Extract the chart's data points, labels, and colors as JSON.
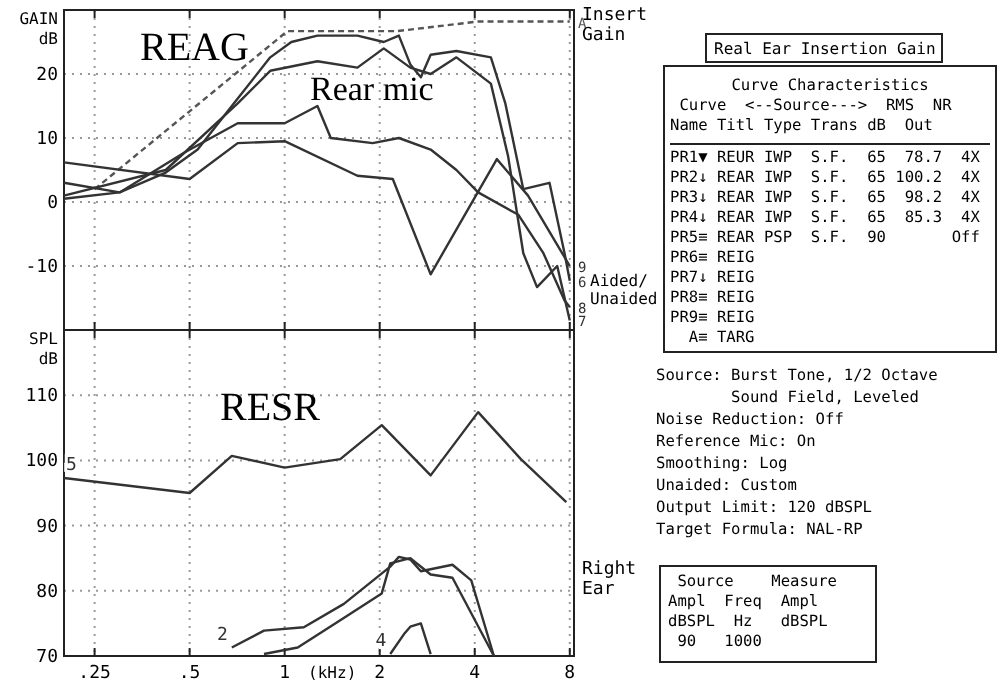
{
  "chart_data": [
    {
      "type": "line",
      "ylabel": "GAIN dB",
      "xlim": [
        0.2,
        8.25
      ],
      "ylim": [
        -20,
        30
      ],
      "log": "x",
      "grid": true,
      "tick_labels": "y",
      "marker": "none",
      "xticks": [
        0.25,
        0.5,
        1,
        2,
        4,
        8
      ],
      "yticks": [
        -10,
        0,
        10,
        20
      ],
      "annotations": [
        "REAG",
        "Rear mic",
        "Insert Gain",
        "Aided/ Unaided"
      ],
      "series": [
        {
          "name": "A",
          "color": "#555555",
          "line_style": "dashed",
          "x": [
            0.25,
            1.02,
            2.27,
            4.1,
            8
          ],
          "values": [
            2,
            26.7,
            26.7,
            28.2,
            28.2
          ]
        },
        {
          "name": "6",
          "color": "#333333",
          "x": [
            0.2,
            0.3,
            0.42,
            0.53,
            0.69,
            0.9,
            1.05,
            1.27,
            1.7,
            2.06,
            2.3,
            2.5,
            2.7,
            2.9,
            3.5,
            4.5,
            5,
            5.7,
            6.9,
            7.7,
            8
          ],
          "values": [
            3,
            1.5,
            4.6,
            8.2,
            15.4,
            22.6,
            25,
            26,
            26,
            25,
            26,
            21.5,
            19.5,
            23,
            23.6,
            22.6,
            15.4,
            2,
            3,
            -8,
            -12.3
          ]
        },
        {
          "name": "7",
          "color": "#333333",
          "x": [
            0.2,
            0.42,
            0.71,
            0.9,
            1.27,
            1.7,
            2.06,
            2.5,
            2.9,
            3.5,
            4.5,
            5.1,
            5.7,
            6.3,
            7.3,
            8
          ],
          "values": [
            1,
            5,
            15.4,
            20.5,
            22,
            21,
            24,
            21,
            20,
            22.6,
            18.5,
            7.2,
            -8,
            -13.3,
            -10,
            -18.5
          ]
        },
        {
          "name": "8",
          "color": "#333333",
          "x": [
            0.2,
            0.3,
            0.48,
            0.71,
            1,
            1.27,
            1.4,
            1.9,
            2.3,
            2.9,
            3.5,
            4.1,
            5.5,
            6.6,
            7.7,
            8
          ],
          "values": [
            0.5,
            1.5,
            7.7,
            12.3,
            12.3,
            15,
            10,
            9.2,
            10,
            8.2,
            5,
            1.5,
            -2,
            -8,
            -15.4,
            -16.4
          ]
        },
        {
          "name": "9",
          "color": "#333333",
          "x": [
            0.2,
            0.5,
            0.71,
            1,
            1.7,
            2.2,
            2.9,
            4.7,
            5.9,
            8
          ],
          "values": [
            6.2,
            3.6,
            9.2,
            9.5,
            4.1,
            3.6,
            -11.3,
            6.7,
            1,
            -10
          ]
        }
      ]
    },
    {
      "type": "line",
      "ylabel": "SPL dB",
      "xlabel": "(kHz)",
      "xlim": [
        0.2,
        8.25
      ],
      "ylim": [
        70,
        120
      ],
      "log": "x",
      "grid": true,
      "marker": "none",
      "xticks": [
        {
          "value": 0.25,
          "label": ".25"
        },
        {
          "value": 0.5,
          "label": ".5"
        },
        1,
        2,
        4,
        8
      ],
      "yticks": [
        70,
        80,
        90,
        100,
        110
      ],
      "annotations": [
        "RESR",
        "Right Ear"
      ],
      "series": [
        {
          "name": "5",
          "color": "#333333",
          "x": [
            0.2,
            0.5,
            0.68,
            1,
            1.5,
            2.03,
            2.9,
            4.1,
            5.6,
            7.8
          ],
          "values": [
            97.3,
            95,
            100.7,
            98.9,
            100.2,
            105.4,
            97.7,
            107.4,
            100.2,
            93.6
          ]
        },
        {
          "name": "2",
          "color": "#333333",
          "x": [
            0.68,
            0.86,
            1.15,
            1.54,
            2.16,
            2.3,
            2.5,
            2.7,
            3.4,
            3.9,
            4.6
          ],
          "values": [
            71.3,
            73.9,
            74.4,
            78,
            83.7,
            85.2,
            84.8,
            83,
            84,
            81.6,
            70
          ]
        },
        {
          "color": "#333333",
          "x": [
            0.86,
            1.1,
            1.5,
            2.03,
            2.16,
            2.5,
            2.9,
            3.4,
            4.6
          ],
          "values": [
            70.3,
            71.3,
            75.5,
            79.6,
            84.2,
            85,
            82.5,
            82,
            70
          ]
        },
        {
          "name": "4",
          "color": "#333333",
          "x": [
            2.16,
            2.4,
            2.5,
            2.7,
            2.9
          ],
          "values": [
            70.3,
            73.5,
            74.5,
            75,
            70.3
          ]
        }
      ]
    },
    {
      "type": "other",
      "title": "Real Ear Insertion Gain",
      "annotations": [
        "Curve Characteristics",
        " Curve  <--Source--->  RMS  NR",
        "Name Titl Type Trans dB  Out",
        "PR1▼ REUR IWP  S.F.  65  78.7  4X",
        "PR2↓ REAR IWP  S.F.  65 100.2  4X",
        "PR3↓ REAR IWP  S.F.  65  98.2  4X",
        "PR4↓ REAR IWP  S.F.  65  85.3  4X",
        "PR5≡ REAR PSP  S.F.  90       Off",
        "PR6≡ REIG",
        "PR7↓ REIG",
        "PR8≡ REIG",
        "PR9≡ REIG",
        "  A≡ TARG",
        "Source: Burst Tone, 1/2 Octave",
        "        Sound Field, Leveled",
        "Noise Reduction: Off",
        "Reference Mic: On",
        "Smoothing: Log",
        "Unaided: Custom",
        "Output Limit: 120 dBSPL",
        "Target Formula: NAL-RP",
        " Source    Measure",
        "Ampl  Freq  Ampl",
        "dBSPL  Hz   dBSPL",
        " 90   1000"
      ]
    }
  ]
}
